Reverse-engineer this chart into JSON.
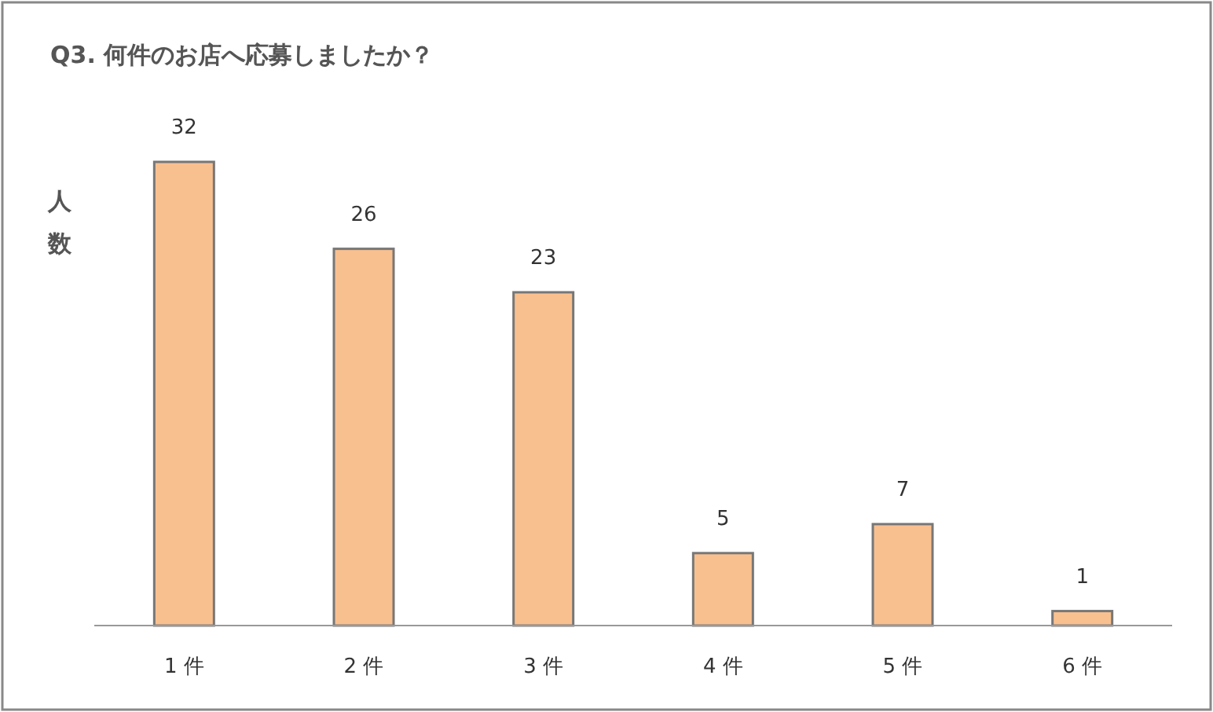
{
  "chart_data": {
    "type": "bar",
    "title": "Q3. 何件のお店へ応募しましたか？",
    "ylabel": "人数",
    "categories": [
      "1 件",
      "2 件",
      "3 件",
      "4 件",
      "5 件",
      "6 件"
    ],
    "values": [
      32,
      26,
      23,
      5,
      7,
      1
    ],
    "color": "#f9c08f",
    "data_labels": true
  }
}
